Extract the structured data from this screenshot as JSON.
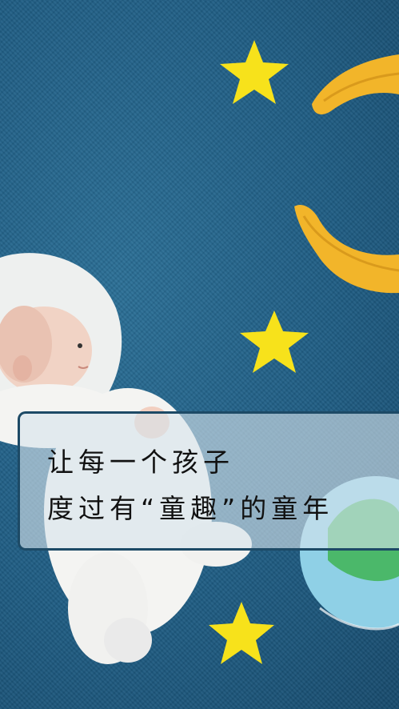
{
  "banner": {
    "line1": "让每一个孩子",
    "line2": "度过有“童趣”的童年"
  },
  "colors": {
    "background": "#1f5d84",
    "star": "#f7e21b",
    "moon": "#f0b52b",
    "banner_border": "#1d4a66"
  }
}
